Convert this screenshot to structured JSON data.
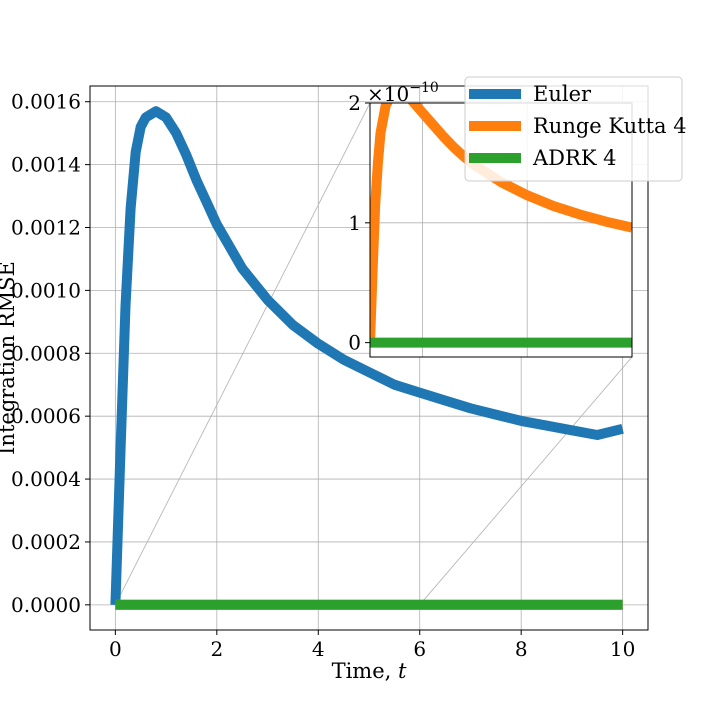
{
  "chart_data": [
    {
      "type": "line",
      "xlabel_prefix": "Time, ",
      "xlabel_var": "t",
      "ylabel": "Integration RMSE",
      "xlim": [
        -0.5,
        10.5
      ],
      "ylim": [
        -8e-05,
        0.00165
      ],
      "xticks": [
        0,
        2,
        4,
        6,
        8,
        10
      ],
      "xtick_labels": [
        "0",
        "2",
        "4",
        "6",
        "8",
        "10"
      ],
      "yticks": [
        0,
        0.0002,
        0.0004,
        0.0006,
        0.0008,
        0.001,
        0.0012,
        0.0014,
        0.0016
      ],
      "ytick_labels": [
        "0.0000",
        "0.0002",
        "0.0004",
        "0.0006",
        "0.0008",
        "0.0010",
        "0.0012",
        "0.0014",
        "0.0016"
      ],
      "grid": true,
      "series": [
        {
          "name": "Euler",
          "color": "#1f77b4",
          "x": [
            0,
            0.1,
            0.2,
            0.3,
            0.4,
            0.5,
            0.6,
            0.7,
            0.8,
            0.9,
            1.0,
            1.2,
            1.4,
            1.6,
            1.8,
            2.0,
            2.5,
            3.0,
            3.5,
            4.0,
            4.5,
            5.0,
            5.5,
            6.0,
            6.5,
            7.0,
            7.5,
            8.0,
            8.5,
            9.0,
            9.5,
            10.0
          ],
          "y": [
            0,
            0.00048,
            0.00095,
            0.00126,
            0.00144,
            0.00152,
            0.00155,
            0.00156,
            0.00157,
            0.00156,
            0.00155,
            0.0015,
            0.00143,
            0.00135,
            0.00128,
            0.00121,
            0.00107,
            0.00097,
            0.00089,
            0.00083,
            0.00078,
            0.00074,
            0.0007,
            0.000675,
            0.00065,
            0.000625,
            0.000605,
            0.000585,
            0.00057,
            0.000555,
            0.00054,
            0.00056
          ]
        },
        {
          "name": "Runge Kutta 4",
          "color": "#ff7f0e",
          "x": [
            0,
            10
          ],
          "y": [
            0,
            0
          ]
        },
        {
          "name": "ADRK 4",
          "color": "#2ca02c",
          "x": [
            0,
            10
          ],
          "y": [
            0,
            0
          ]
        }
      ],
      "legend": {
        "location": "top-right",
        "entries": [
          "Euler",
          "Runge Kutta 4",
          "ADRK 4"
        ]
      }
    },
    {
      "type": "line",
      "role": "inset zoom",
      "xlim": [
        5,
        10
      ],
      "ylim": [
        -0.12,
        2.0
      ],
      "yticks": [
        0,
        1,
        2
      ],
      "ytick_labels": [
        "0",
        "1",
        "2"
      ],
      "x_gridlines": [
        6,
        8
      ],
      "scale_prefix": "×10",
      "scale_exponent": "−10",
      "grid": true,
      "series": [
        {
          "name": "Runge Kutta 4",
          "color": "#ff7f0e",
          "unit_note": "values in units of 1e-10",
          "x": [
            5.0,
            5.05,
            5.1,
            5.15,
            5.2,
            5.3,
            5.4,
            5.5,
            5.6,
            5.7,
            5.8,
            5.9,
            6.0,
            6.2,
            6.4,
            6.6,
            6.8,
            7.0,
            7.5,
            8.0,
            8.5,
            9.0,
            9.5,
            10.0
          ],
          "y": [
            0,
            0.6,
            1.15,
            1.5,
            1.75,
            1.98,
            2.06,
            2.09,
            2.09,
            2.06,
            2.02,
            1.97,
            1.92,
            1.82,
            1.72,
            1.63,
            1.55,
            1.48,
            1.34,
            1.23,
            1.14,
            1.07,
            1.01,
            0.96
          ]
        },
        {
          "name": "ADRK 4",
          "color": "#2ca02c",
          "x": [
            5,
            10
          ],
          "y": [
            0,
            0
          ]
        }
      ]
    }
  ]
}
